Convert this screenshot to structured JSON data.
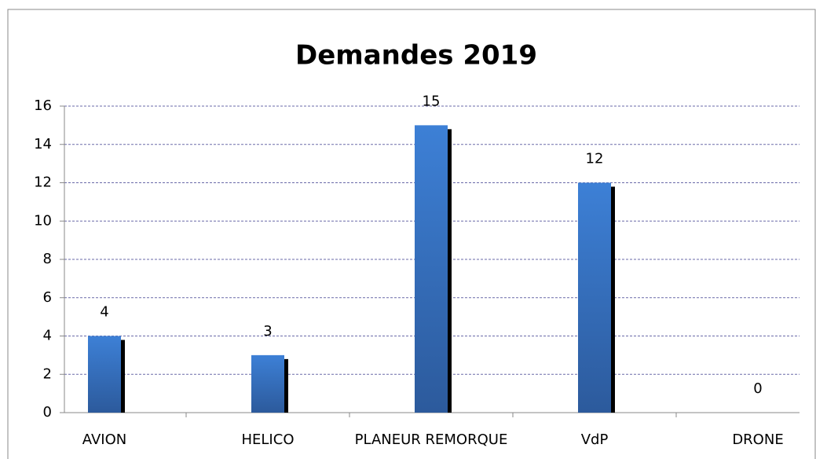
{
  "chart_data": {
    "type": "bar",
    "title": "Demandes 2019",
    "categories": [
      "AVION",
      "HELICO",
      "PLANEUR REMORQUE",
      "VdP",
      "DRONE"
    ],
    "values": [
      4,
      3,
      15,
      12,
      0
    ],
    "color": "#3a7bd0",
    "ylim": [
      0,
      16
    ],
    "yticks": [
      0,
      2,
      4,
      6,
      8,
      10,
      12,
      14,
      16
    ],
    "grid": true
  }
}
